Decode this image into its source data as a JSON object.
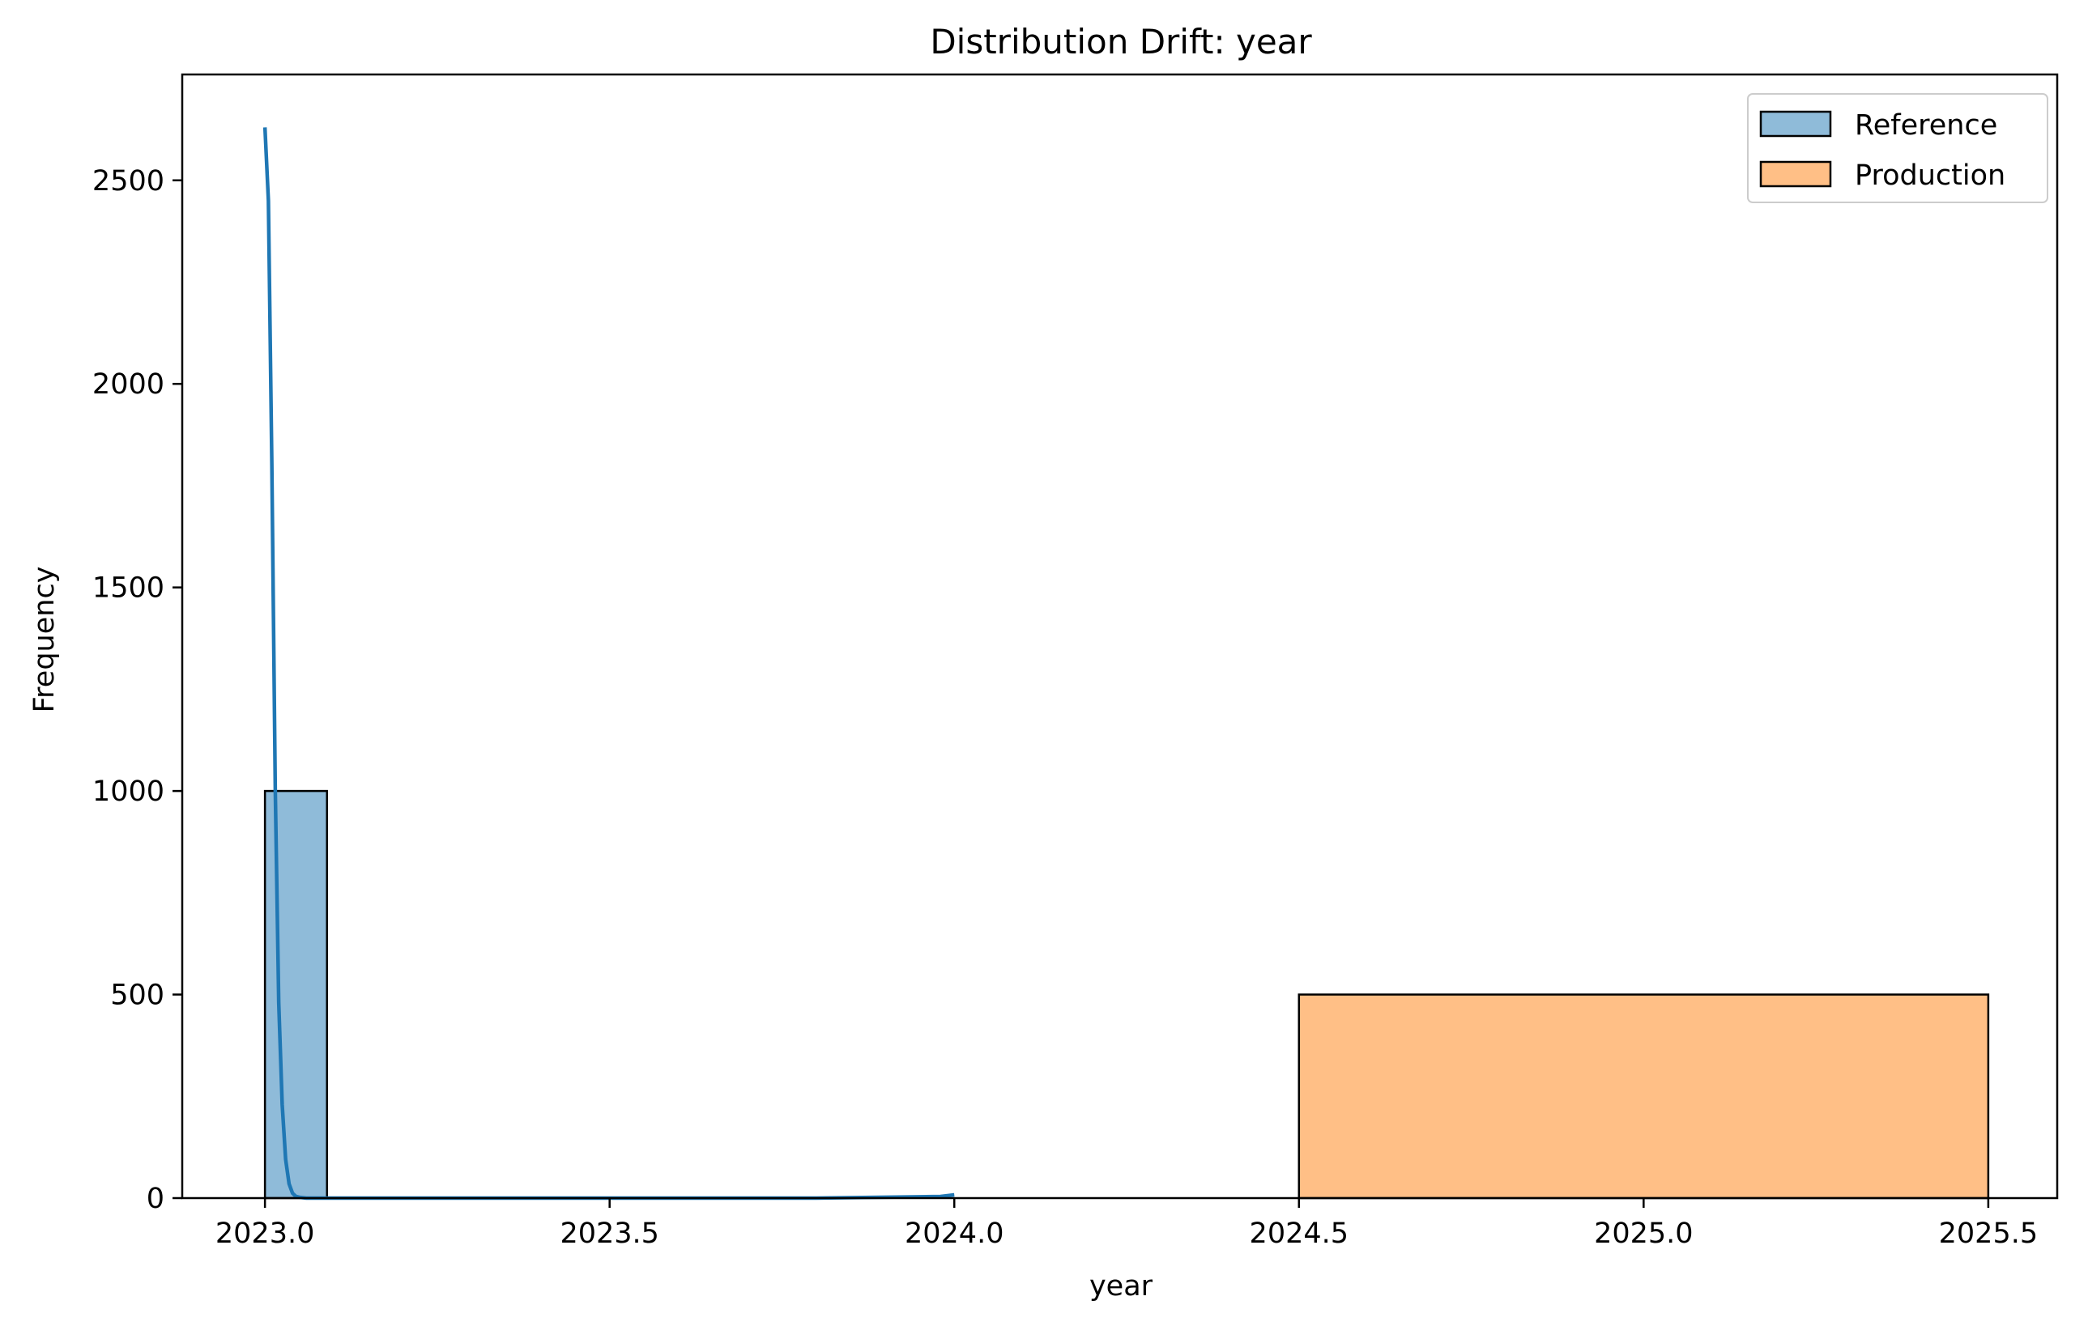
{
  "chart_data": {
    "type": "bar",
    "title": "Distribution Drift: year",
    "xlabel": "year",
    "ylabel": "Frequency",
    "xlim": [
      2022.88,
      2025.6
    ],
    "ylim": [
      0,
      2760
    ],
    "xticks": [
      2023.0,
      2023.5,
      2024.0,
      2024.5,
      2025.0,
      2025.5
    ],
    "xtick_labels": [
      "2023.0",
      "2023.5",
      "2024.0",
      "2024.5",
      "2025.0",
      "2025.5"
    ],
    "yticks": [
      0,
      500,
      1000,
      1500,
      2000,
      2500
    ],
    "ytick_labels": [
      "0",
      "500",
      "1000",
      "1500",
      "2000",
      "2500"
    ],
    "grid": false,
    "legend_position": "top-right",
    "series": [
      {
        "name": "Reference",
        "kind": "histogram",
        "color": "#1f77b4",
        "fill_color": "#8fbbd9",
        "bins": [
          {
            "x0": 2023.0,
            "x1": 2023.09,
            "count": 1000
          },
          {
            "x0": 2023.09,
            "x1": 2024.0,
            "count": 0
          }
        ],
        "kde": {
          "x": [
            2023.0,
            2023.005,
            2023.01,
            2023.015,
            2023.02,
            2023.025,
            2023.03,
            2023.035,
            2023.04,
            2023.045,
            2023.05,
            2023.06,
            2023.08,
            2023.2,
            2023.5,
            2023.8,
            2023.98,
            2024.0
          ],
          "y": [
            2630,
            2450,
            1800,
            1000,
            480,
            230,
            95,
            35,
            12,
            4,
            2,
            0,
            0,
            0,
            0,
            0,
            4,
            8
          ]
        }
      },
      {
        "name": "Production",
        "kind": "histogram",
        "color": "#ff7f0e",
        "fill_color": "#ffbf86",
        "bins": [
          {
            "x0": 2024.5,
            "x1": 2025.5,
            "count": 500
          }
        ]
      }
    ]
  }
}
